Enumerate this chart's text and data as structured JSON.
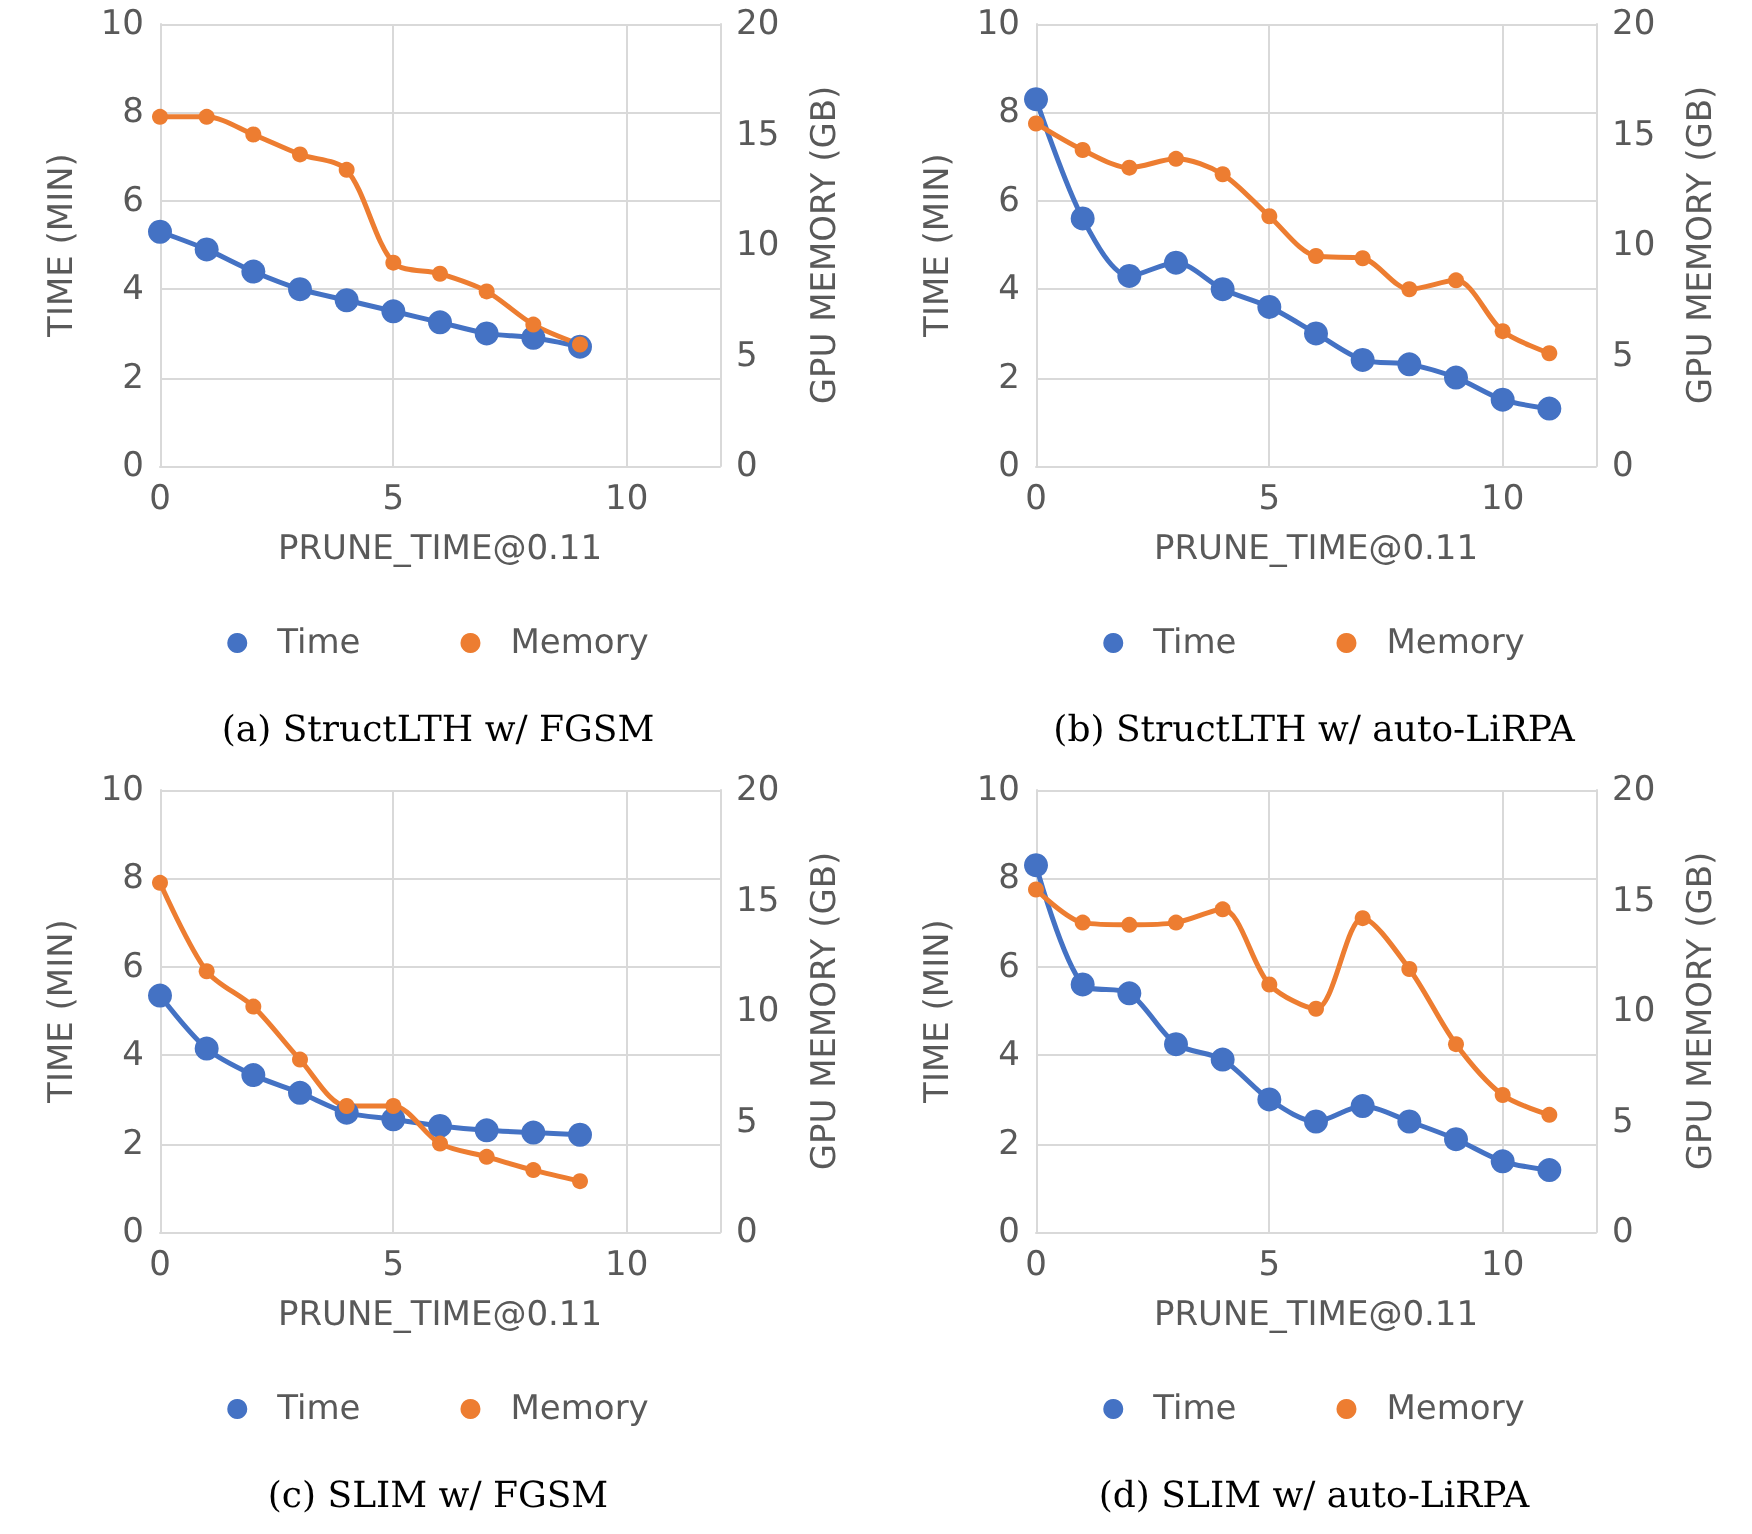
{
  "chart_data": [
    {
      "type": "line",
      "title": "(a) StructLTH w/ FGSM",
      "xlabel": "PRUNE_TIME@0.11",
      "ylabel": "TIME (MIN)",
      "y2label": "GPU MEMORY (GB)",
      "x": [
        0,
        1,
        2,
        3,
        4,
        5,
        6,
        7,
        8,
        9
      ],
      "xlim": [
        0,
        12
      ],
      "xticks": [
        0,
        5,
        10
      ],
      "ylim": [
        0,
        10
      ],
      "yticks": [
        0,
        2,
        4,
        6,
        8,
        10
      ],
      "y2lim": [
        0,
        20
      ],
      "y2ticks": [
        0,
        5,
        10,
        15,
        20
      ],
      "grid": true,
      "legend": "bottom",
      "marker": "circle",
      "series": [
        {
          "name": "Time",
          "color": "#4472c4",
          "values": [
            5.3,
            4.9,
            4.4,
            4.0,
            3.75,
            3.5,
            3.25,
            3.0,
            2.9,
            2.7
          ]
        },
        {
          "name": "Memory",
          "color": "#ed7d31",
          "axis": "y2",
          "values": [
            15.8,
            15.8,
            15.0,
            14.1,
            13.4,
            9.2,
            8.7,
            7.9,
            6.4,
            5.5
          ]
        }
      ]
    },
    {
      "type": "line",
      "title": "(b) StructLTH w/ auto-LiRPA",
      "xlabel": "PRUNE_TIME@0.11",
      "ylabel": "TIME (MIN)",
      "y2label": "GPU MEMORY (GB)",
      "x": [
        0,
        1,
        2,
        3,
        4,
        5,
        6,
        7,
        8,
        9,
        10,
        11
      ],
      "xlim": [
        0,
        12
      ],
      "xticks": [
        0,
        5,
        10
      ],
      "ylim": [
        0,
        10
      ],
      "yticks": [
        0,
        2,
        4,
        6,
        8,
        10
      ],
      "y2lim": [
        0,
        20
      ],
      "y2ticks": [
        0,
        5,
        10,
        15,
        20
      ],
      "grid": true,
      "legend": "bottom",
      "marker": "circle",
      "series": [
        {
          "name": "Time",
          "color": "#4472c4",
          "values": [
            8.3,
            5.6,
            4.3,
            4.6,
            4.0,
            3.6,
            3.0,
            2.4,
            2.3,
            2.0,
            1.5,
            1.3
          ]
        },
        {
          "name": "Memory",
          "color": "#ed7d31",
          "axis": "y2",
          "values": [
            15.5,
            14.3,
            13.5,
            13.9,
            13.2,
            11.3,
            9.5,
            9.4,
            8.0,
            8.4,
            6.1,
            5.1
          ]
        }
      ]
    },
    {
      "type": "line",
      "title": "(c) SLIM w/ FGSM",
      "xlabel": "PRUNE_TIME@0.11",
      "ylabel": "TIME (MIN)",
      "y2label": "GPU MEMORY (GB)",
      "x": [
        0,
        1,
        2,
        3,
        4,
        5,
        6,
        7,
        8,
        9
      ],
      "xlim": [
        0,
        12
      ],
      "xticks": [
        0,
        5,
        10
      ],
      "ylim": [
        0,
        10
      ],
      "yticks": [
        0,
        2,
        4,
        6,
        8,
        10
      ],
      "y2lim": [
        0,
        20
      ],
      "y2ticks": [
        0,
        5,
        10,
        15,
        20
      ],
      "grid": true,
      "legend": "bottom",
      "marker": "circle",
      "series": [
        {
          "name": "Time",
          "color": "#4472c4",
          "values": [
            5.35,
            4.15,
            3.55,
            3.15,
            2.7,
            2.55,
            2.4,
            2.3,
            2.25,
            2.2
          ]
        },
        {
          "name": "Memory",
          "color": "#ed7d31",
          "axis": "y2",
          "values": [
            15.8,
            11.8,
            10.2,
            7.8,
            5.7,
            5.7,
            4.0,
            3.4,
            2.8,
            2.3
          ]
        }
      ]
    },
    {
      "type": "line",
      "title": "(d) SLIM w/ auto-LiRPA",
      "xlabel": "PRUNE_TIME@0.11",
      "ylabel": "TIME (MIN)",
      "y2label": "GPU MEMORY (GB)",
      "x": [
        0,
        1,
        2,
        3,
        4,
        5,
        6,
        7,
        8,
        9,
        10,
        11
      ],
      "xlim": [
        0,
        12
      ],
      "xticks": [
        0,
        5,
        10
      ],
      "ylim": [
        0,
        10
      ],
      "yticks": [
        0,
        2,
        4,
        6,
        8,
        10
      ],
      "y2lim": [
        0,
        20
      ],
      "y2ticks": [
        0,
        5,
        10,
        15,
        20
      ],
      "grid": true,
      "legend": "bottom",
      "marker": "circle",
      "series": [
        {
          "name": "Time",
          "color": "#4472c4",
          "values": [
            8.3,
            5.6,
            5.4,
            4.25,
            3.9,
            3.0,
            2.5,
            2.85,
            2.5,
            2.1,
            1.6,
            1.4
          ]
        },
        {
          "name": "Memory",
          "color": "#ed7d31",
          "axis": "y2",
          "values": [
            15.5,
            14.0,
            13.9,
            14.0,
            14.6,
            11.2,
            10.1,
            14.2,
            11.9,
            8.5,
            6.2,
            5.3
          ]
        }
      ]
    }
  ]
}
